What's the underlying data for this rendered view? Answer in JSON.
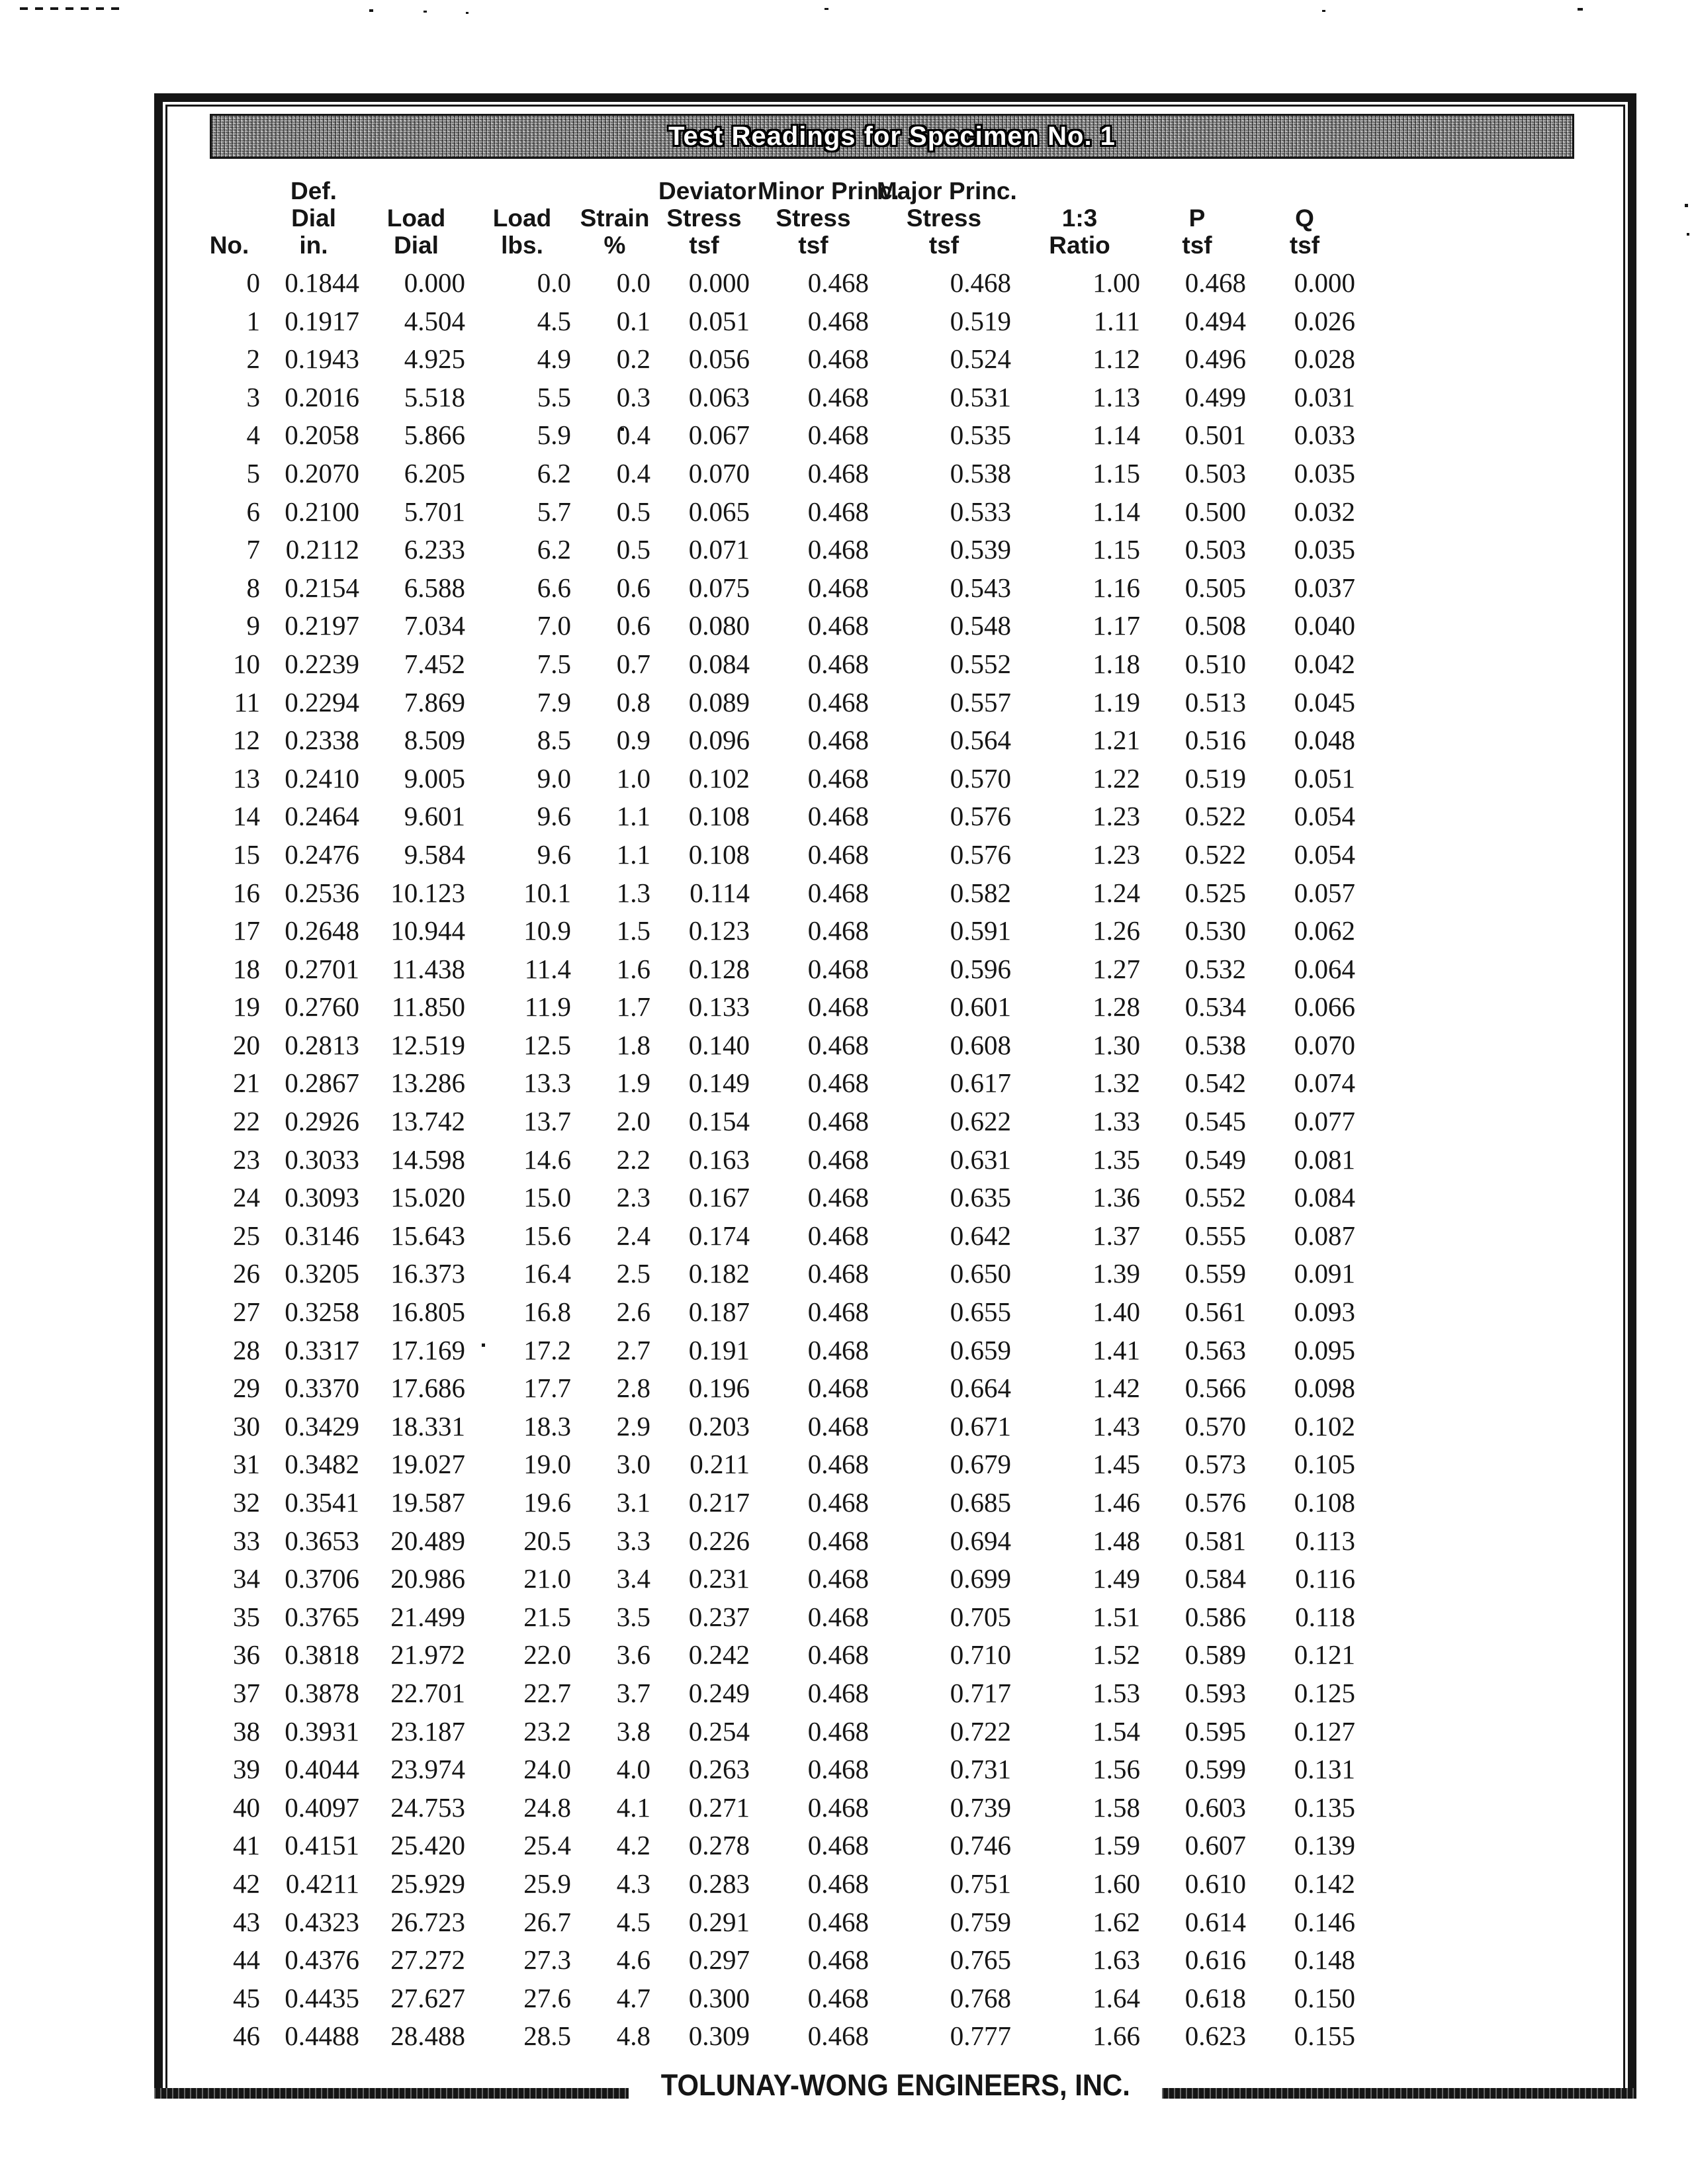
{
  "title": "Test Readings for Specimen No. 1",
  "footer": "TOLUNAY-WONG ENGINEERS, INC.",
  "colors": {
    "ink": "#151515",
    "paper": "#ffffff",
    "titlebar_fill": "#999999"
  },
  "table": {
    "header_lines": [
      [
        "",
        "Def.",
        "",
        "",
        "",
        "Deviator",
        "Minor Princ.",
        "Major Princ.",
        "",
        "",
        ""
      ],
      [
        "",
        "Dial",
        "Load",
        "Load",
        "Strain",
        "Stress",
        "Stress",
        "Stress",
        "1:3",
        "P",
        "Q"
      ],
      [
        "No.",
        "in.",
        "Dial",
        "lbs.",
        "%",
        "tsf",
        "tsf",
        "tsf",
        "Ratio",
        "tsf",
        "tsf"
      ]
    ],
    "rows": [
      [
        "0",
        "0.1844",
        "0.000",
        "0.0",
        "0.0",
        "0.000",
        "0.468",
        "0.468",
        "1.00",
        "0.468",
        "0.000"
      ],
      [
        "1",
        "0.1917",
        "4.504",
        "4.5",
        "0.1",
        "0.051",
        "0.468",
        "0.519",
        "1.11",
        "0.494",
        "0.026"
      ],
      [
        "2",
        "0.1943",
        "4.925",
        "4.9",
        "0.2",
        "0.056",
        "0.468",
        "0.524",
        "1.12",
        "0.496",
        "0.028"
      ],
      [
        "3",
        "0.2016",
        "5.518",
        "5.5",
        "0.3",
        "0.063",
        "0.468",
        "0.531",
        "1.13",
        "0.499",
        "0.031"
      ],
      [
        "4",
        "0.2058",
        "5.866",
        "5.9",
        "0.4",
        "0.067",
        "0.468",
        "0.535",
        "1.14",
        "0.501",
        "0.033"
      ],
      [
        "5",
        "0.2070",
        "6.205",
        "6.2",
        "0.4",
        "0.070",
        "0.468",
        "0.538",
        "1.15",
        "0.503",
        "0.035"
      ],
      [
        "6",
        "0.2100",
        "5.701",
        "5.7",
        "0.5",
        "0.065",
        "0.468",
        "0.533",
        "1.14",
        "0.500",
        "0.032"
      ],
      [
        "7",
        "0.2112",
        "6.233",
        "6.2",
        "0.5",
        "0.071",
        "0.468",
        "0.539",
        "1.15",
        "0.503",
        "0.035"
      ],
      [
        "8",
        "0.2154",
        "6.588",
        "6.6",
        "0.6",
        "0.075",
        "0.468",
        "0.543",
        "1.16",
        "0.505",
        "0.037"
      ],
      [
        "9",
        "0.2197",
        "7.034",
        "7.0",
        "0.6",
        "0.080",
        "0.468",
        "0.548",
        "1.17",
        "0.508",
        "0.040"
      ],
      [
        "10",
        "0.2239",
        "7.452",
        "7.5",
        "0.7",
        "0.084",
        "0.468",
        "0.552",
        "1.18",
        "0.510",
        "0.042"
      ],
      [
        "11",
        "0.2294",
        "7.869",
        "7.9",
        "0.8",
        "0.089",
        "0.468",
        "0.557",
        "1.19",
        "0.513",
        "0.045"
      ],
      [
        "12",
        "0.2338",
        "8.509",
        "8.5",
        "0.9",
        "0.096",
        "0.468",
        "0.564",
        "1.21",
        "0.516",
        "0.048"
      ],
      [
        "13",
        "0.2410",
        "9.005",
        "9.0",
        "1.0",
        "0.102",
        "0.468",
        "0.570",
        "1.22",
        "0.519",
        "0.051"
      ],
      [
        "14",
        "0.2464",
        "9.601",
        "9.6",
        "1.1",
        "0.108",
        "0.468",
        "0.576",
        "1.23",
        "0.522",
        "0.054"
      ],
      [
        "15",
        "0.2476",
        "9.584",
        "9.6",
        "1.1",
        "0.108",
        "0.468",
        "0.576",
        "1.23",
        "0.522",
        "0.054"
      ],
      [
        "16",
        "0.2536",
        "10.123",
        "10.1",
        "1.3",
        "0.114",
        "0.468",
        "0.582",
        "1.24",
        "0.525",
        "0.057"
      ],
      [
        "17",
        "0.2648",
        "10.944",
        "10.9",
        "1.5",
        "0.123",
        "0.468",
        "0.591",
        "1.26",
        "0.530",
        "0.062"
      ],
      [
        "18",
        "0.2701",
        "11.438",
        "11.4",
        "1.6",
        "0.128",
        "0.468",
        "0.596",
        "1.27",
        "0.532",
        "0.064"
      ],
      [
        "19",
        "0.2760",
        "11.850",
        "11.9",
        "1.7",
        "0.133",
        "0.468",
        "0.601",
        "1.28",
        "0.534",
        "0.066"
      ],
      [
        "20",
        "0.2813",
        "12.519",
        "12.5",
        "1.8",
        "0.140",
        "0.468",
        "0.608",
        "1.30",
        "0.538",
        "0.070"
      ],
      [
        "21",
        "0.2867",
        "13.286",
        "13.3",
        "1.9",
        "0.149",
        "0.468",
        "0.617",
        "1.32",
        "0.542",
        "0.074"
      ],
      [
        "22",
        "0.2926",
        "13.742",
        "13.7",
        "2.0",
        "0.154",
        "0.468",
        "0.622",
        "1.33",
        "0.545",
        "0.077"
      ],
      [
        "23",
        "0.3033",
        "14.598",
        "14.6",
        "2.2",
        "0.163",
        "0.468",
        "0.631",
        "1.35",
        "0.549",
        "0.081"
      ],
      [
        "24",
        "0.3093",
        "15.020",
        "15.0",
        "2.3",
        "0.167",
        "0.468",
        "0.635",
        "1.36",
        "0.552",
        "0.084"
      ],
      [
        "25",
        "0.3146",
        "15.643",
        "15.6",
        "2.4",
        "0.174",
        "0.468",
        "0.642",
        "1.37",
        "0.555",
        "0.087"
      ],
      [
        "26",
        "0.3205",
        "16.373",
        "16.4",
        "2.5",
        "0.182",
        "0.468",
        "0.650",
        "1.39",
        "0.559",
        "0.091"
      ],
      [
        "27",
        "0.3258",
        "16.805",
        "16.8",
        "2.6",
        "0.187",
        "0.468",
        "0.655",
        "1.40",
        "0.561",
        "0.093"
      ],
      [
        "28",
        "0.3317",
        "17.169",
        "17.2",
        "2.7",
        "0.191",
        "0.468",
        "0.659",
        "1.41",
        "0.563",
        "0.095"
      ],
      [
        "29",
        "0.3370",
        "17.686",
        "17.7",
        "2.8",
        "0.196",
        "0.468",
        "0.664",
        "1.42",
        "0.566",
        "0.098"
      ],
      [
        "30",
        "0.3429",
        "18.331",
        "18.3",
        "2.9",
        "0.203",
        "0.468",
        "0.671",
        "1.43",
        "0.570",
        "0.102"
      ],
      [
        "31",
        "0.3482",
        "19.027",
        "19.0",
        "3.0",
        "0.211",
        "0.468",
        "0.679",
        "1.45",
        "0.573",
        "0.105"
      ],
      [
        "32",
        "0.3541",
        "19.587",
        "19.6",
        "3.1",
        "0.217",
        "0.468",
        "0.685",
        "1.46",
        "0.576",
        "0.108"
      ],
      [
        "33",
        "0.3653",
        "20.489",
        "20.5",
        "3.3",
        "0.226",
        "0.468",
        "0.694",
        "1.48",
        "0.581",
        "0.113"
      ],
      [
        "34",
        "0.3706",
        "20.986",
        "21.0",
        "3.4",
        "0.231",
        "0.468",
        "0.699",
        "1.49",
        "0.584",
        "0.116"
      ],
      [
        "35",
        "0.3765",
        "21.499",
        "21.5",
        "3.5",
        "0.237",
        "0.468",
        "0.705",
        "1.51",
        "0.586",
        "0.118"
      ],
      [
        "36",
        "0.3818",
        "21.972",
        "22.0",
        "3.6",
        "0.242",
        "0.468",
        "0.710",
        "1.52",
        "0.589",
        "0.121"
      ],
      [
        "37",
        "0.3878",
        "22.701",
        "22.7",
        "3.7",
        "0.249",
        "0.468",
        "0.717",
        "1.53",
        "0.593",
        "0.125"
      ],
      [
        "38",
        "0.3931",
        "23.187",
        "23.2",
        "3.8",
        "0.254",
        "0.468",
        "0.722",
        "1.54",
        "0.595",
        "0.127"
      ],
      [
        "39",
        "0.4044",
        "23.974",
        "24.0",
        "4.0",
        "0.263",
        "0.468",
        "0.731",
        "1.56",
        "0.599",
        "0.131"
      ],
      [
        "40",
        "0.4097",
        "24.753",
        "24.8",
        "4.1",
        "0.271",
        "0.468",
        "0.739",
        "1.58",
        "0.603",
        "0.135"
      ],
      [
        "41",
        "0.4151",
        "25.420",
        "25.4",
        "4.2",
        "0.278",
        "0.468",
        "0.746",
        "1.59",
        "0.607",
        "0.139"
      ],
      [
        "42",
        "0.4211",
        "25.929",
        "25.9",
        "4.3",
        "0.283",
        "0.468",
        "0.751",
        "1.60",
        "0.610",
        "0.142"
      ],
      [
        "43",
        "0.4323",
        "26.723",
        "26.7",
        "4.5",
        "0.291",
        "0.468",
        "0.759",
        "1.62",
        "0.614",
        "0.146"
      ],
      [
        "44",
        "0.4376",
        "27.272",
        "27.3",
        "4.6",
        "0.297",
        "0.468",
        "0.765",
        "1.63",
        "0.616",
        "0.148"
      ],
      [
        "45",
        "0.4435",
        "27.627",
        "27.6",
        "4.7",
        "0.300",
        "0.468",
        "0.768",
        "1.64",
        "0.618",
        "0.150"
      ],
      [
        "46",
        "0.4488",
        "28.488",
        "28.5",
        "4.8",
        "0.309",
        "0.468",
        "0.777",
        "1.66",
        "0.623",
        "0.155"
      ]
    ]
  }
}
